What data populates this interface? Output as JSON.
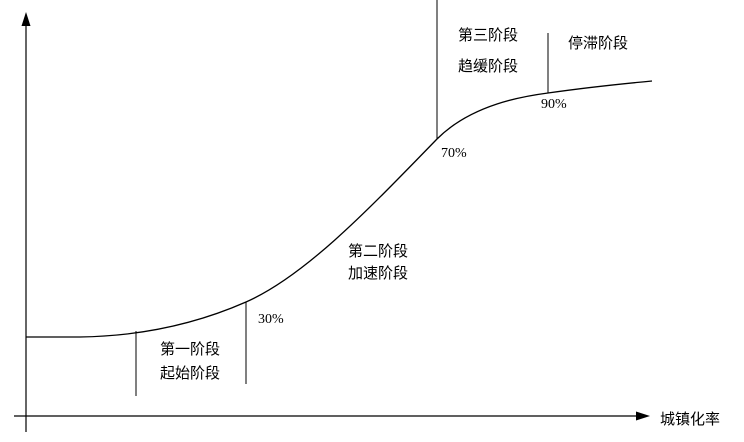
{
  "axis": {
    "x_label": "城镇化率"
  },
  "stages": [
    {
      "line1": "第一阶段",
      "line2": "起始阶段"
    },
    {
      "line1": "第二阶段",
      "line2": "加速阶段"
    },
    {
      "line1": "第三阶段",
      "line2": "趋缓阶段"
    },
    {
      "line1": "停滞阶段"
    }
  ],
  "thresholds": [
    "30%",
    "70%",
    "90%"
  ]
}
